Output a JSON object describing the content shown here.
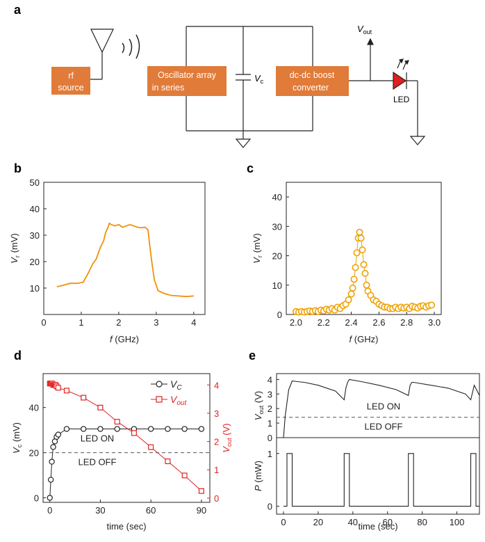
{
  "panel_labels": {
    "a": "a",
    "b": "b",
    "c": "c",
    "d": "d",
    "e": "e"
  },
  "circuit": {
    "rf_source": [
      "rf",
      "source"
    ],
    "oscillator": [
      "Oscillator array",
      "in series"
    ],
    "boost": [
      "dc-dc boost",
      "converter"
    ],
    "vc_label": "V",
    "vc_sub": "c",
    "vout_label": "V",
    "vout_sub": "out",
    "led_label": "LED",
    "box_color": "#e07b39",
    "led_color": "#e02020"
  },
  "chart_data": [
    {
      "id": "b",
      "type": "line",
      "color": "#f0900a",
      "xlabel_italic": "f",
      "xlabel_rest": " (GHz)",
      "ylabel_italic": "V",
      "ylabel_sub": "r",
      "ylabel_rest": " (mV)",
      "xlim": [
        0,
        4.3
      ],
      "ylim": [
        0,
        50
      ],
      "xticks": [
        0,
        1,
        2,
        3,
        4
      ],
      "yticks": [
        10,
        20,
        30,
        40,
        50
      ],
      "x": [
        0.35,
        0.5,
        0.7,
        0.9,
        1.05,
        1.2,
        1.3,
        1.4,
        1.5,
        1.6,
        1.65,
        1.7,
        1.75,
        1.8,
        1.9,
        2.0,
        2.1,
        2.2,
        2.3,
        2.4,
        2.5,
        2.6,
        2.7,
        2.78,
        2.82,
        2.88,
        2.95,
        3.05,
        3.2,
        3.4,
        3.6,
        3.8,
        4.0
      ],
      "y": [
        10.5,
        11,
        11.8,
        11.8,
        12.2,
        16,
        19,
        21,
        25,
        28,
        31,
        32.5,
        34.5,
        34,
        33.5,
        34,
        33,
        33.5,
        34,
        33.5,
        33,
        32.8,
        33,
        32,
        27,
        20,
        13,
        9,
        8,
        7.2,
        7,
        6.8,
        7
      ]
    },
    {
      "id": "c",
      "type": "scatter",
      "color": "#f0a000",
      "xlabel_italic": "f",
      "xlabel_rest": " (GHz)",
      "ylabel_italic": "V",
      "ylabel_sub": "r",
      "ylabel_rest": " (mV)",
      "xlim": [
        1.93,
        3.05
      ],
      "ylim": [
        0,
        45
      ],
      "xticks": [
        2.0,
        2.2,
        2.4,
        2.6,
        2.8,
        3.0
      ],
      "xtick_labels": [
        "2.0",
        "2.2",
        "2.4",
        "2.6",
        "2.8",
        "3.0"
      ],
      "yticks": [
        0,
        10,
        20,
        30,
        40
      ],
      "x": [
        2.0,
        2.02,
        2.04,
        2.06,
        2.08,
        2.1,
        2.12,
        2.14,
        2.16,
        2.18,
        2.2,
        2.22,
        2.24,
        2.26,
        2.28,
        2.3,
        2.32,
        2.34,
        2.36,
        2.38,
        2.4,
        2.41,
        2.42,
        2.43,
        2.44,
        2.45,
        2.46,
        2.47,
        2.48,
        2.49,
        2.5,
        2.51,
        2.52,
        2.54,
        2.56,
        2.58,
        2.6,
        2.62,
        2.64,
        2.66,
        2.68,
        2.7,
        2.72,
        2.74,
        2.76,
        2.78,
        2.8,
        2.82,
        2.84,
        2.86,
        2.88,
        2.9,
        2.92,
        2.94,
        2.96,
        2.98
      ],
      "y": [
        1,
        0.8,
        1,
        0.8,
        1,
        1.2,
        1,
        1.3,
        1,
        1.5,
        1.2,
        1.8,
        1.5,
        2,
        1.5,
        2.5,
        2,
        3,
        3.5,
        5,
        7,
        9,
        12,
        16,
        21,
        26,
        28,
        26,
        22,
        17,
        14,
        10,
        8,
        6.5,
        5,
        4.5,
        3.5,
        3,
        2.5,
        2.5,
        2,
        2,
        2.5,
        2,
        2.5,
        2.2,
        2.5,
        2,
        2.8,
        2.5,
        2.2,
        2.8,
        3,
        2.5,
        3,
        3.2
      ]
    },
    {
      "id": "d",
      "type": "line",
      "xlabel": "time (sec)",
      "xlim": [
        -4,
        95
      ],
      "xticks": [
        0,
        30,
        60,
        90
      ],
      "left_axis": {
        "label_italic": "V",
        "label_sub": "c",
        "label_rest": " (mV)",
        "ylim": [
          -2,
          55
        ],
        "yticks": [
          0,
          20,
          40
        ]
      },
      "right_axis": {
        "label_italic": "V",
        "label_sub": "out",
        "label_rest": " (V)",
        "ylim": [
          -0.15,
          4.4
        ],
        "yticks": [
          0,
          1,
          2,
          3,
          4
        ],
        "color": "#e02020"
      },
      "threshold_left": 20,
      "on_label": "LED ON",
      "off_label": "LED OFF",
      "series": [
        {
          "name_italic": "V",
          "name_sub": "C",
          "axis": "left",
          "marker": "circle",
          "color": "#222222",
          "x": [
            0,
            0.6,
            1.2,
            2,
            3,
            4,
            5,
            10,
            20,
            30,
            40,
            50,
            60,
            70,
            80,
            90
          ],
          "y": [
            0,
            8,
            16,
            22.5,
            25,
            27,
            28,
            30.5,
            30.5,
            30.5,
            30.5,
            30.5,
            30.5,
            30.5,
            30.5,
            30.5
          ]
        },
        {
          "name_italic": "V",
          "name_sub": "out",
          "axis": "right",
          "marker": "square",
          "color": "#e02020",
          "x": [
            0,
            0.5,
            1,
            1.5,
            2,
            2.5,
            3,
            3.5,
            4,
            5,
            10,
            20,
            30,
            40,
            50,
            60,
            70,
            80,
            90
          ],
          "y": [
            4.05,
            4.05,
            4.05,
            4.05,
            4.0,
            4.0,
            4.0,
            4.0,
            3.95,
            3.9,
            3.8,
            3.55,
            3.2,
            2.7,
            2.3,
            1.8,
            1.3,
            0.8,
            0.25
          ]
        }
      ]
    },
    {
      "id": "e_top",
      "type": "line",
      "color": "#222222",
      "ylabel_italic": "V",
      "ylabel_sub": "out",
      "ylabel_rest": " (V)",
      "xlim": [
        -4,
        113
      ],
      "ylim": [
        0,
        4.4
      ],
      "yticks": [
        0,
        1,
        2,
        3,
        4
      ],
      "threshold": 1.4,
      "on_label": "LED ON",
      "off_label": "LED OFF",
      "x": [
        0,
        1,
        3,
        5,
        8,
        12,
        20,
        30,
        35,
        36,
        37,
        38,
        45,
        55,
        65,
        72,
        73,
        74,
        75,
        85,
        95,
        105,
        108,
        109,
        110,
        113
      ],
      "y": [
        0,
        1.5,
        3.3,
        3.9,
        3.85,
        3.8,
        3.6,
        3.2,
        2.6,
        3.4,
        3.8,
        4.0,
        3.85,
        3.6,
        3.3,
        2.9,
        3.6,
        3.8,
        3.8,
        3.6,
        3.4,
        3.0,
        2.6,
        3.1,
        3.6,
        2.9
      ]
    },
    {
      "id": "e_bottom",
      "type": "line",
      "color": "#222222",
      "xlabel": "time (sec)",
      "ylabel_italic": "P",
      "ylabel_rest": " (mW)",
      "xlim": [
        -4,
        113
      ],
      "ylim": [
        -0.15,
        1.3
      ],
      "xticks": [
        0,
        20,
        40,
        60,
        80,
        100
      ],
      "yticks": [
        0,
        1
      ],
      "x": [
        0,
        2,
        2,
        5,
        5,
        35,
        35,
        38,
        38,
        72,
        72,
        75,
        75,
        108,
        108,
        111,
        111,
        113
      ],
      "y": [
        0,
        0,
        1,
        1,
        0,
        0,
        1,
        1,
        0,
        0,
        1,
        1,
        0,
        0,
        1,
        1,
        0,
        0
      ]
    }
  ]
}
